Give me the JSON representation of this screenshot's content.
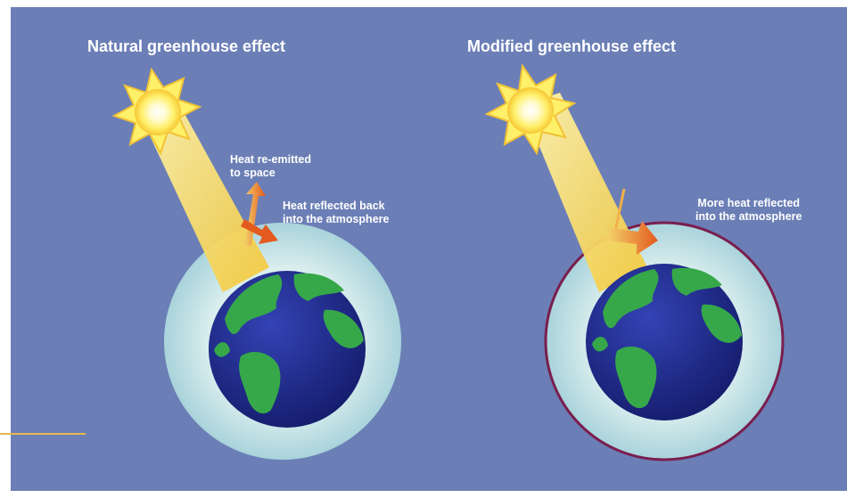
{
  "diagram": {
    "left": {
      "title": "Natural greenhouse effect",
      "labels": {
        "reemitted": "Heat re-emitted\nto space",
        "reflected": "Heat reflected back\ninto the atmosphere"
      }
    },
    "right": {
      "title": "Modified greenhouse effect",
      "labels": {
        "more_heat": "More heat reflected\ninto the atmosphere"
      }
    }
  },
  "colors": {
    "background": "#6b7fb6",
    "atmosphere": "#b7dde3",
    "ocean": "#1f2b86",
    "land": "#3aa84a",
    "sun": "#fff06a",
    "sun_beam": "#f2d24a",
    "heat_arrow": "#e86a2a",
    "boundary": "#7a1e4e"
  }
}
